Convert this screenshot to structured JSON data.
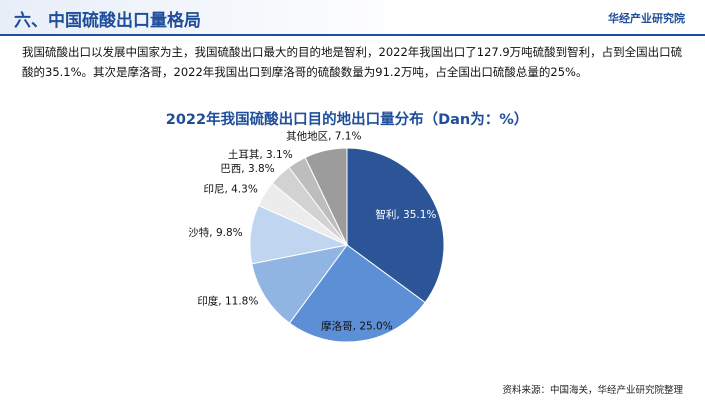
{
  "header": {
    "title": "六、中国硫酸出口量格局",
    "brand": "华经产业研究院"
  },
  "body": {
    "text": "我国硫酸出口以发展中国家为主，我国硫酸出口最大的目的地是智利，2022年我国出口了127.9万吨硫酸到智利，占到全国出口硫酸的35.1%。其次是摩洛哥，2022年我国出口到摩洛哥的硫酸数量为91.2万吨，占全国出口硫酸总量的25%。"
  },
  "chart_data": {
    "type": "pie",
    "title": "2022年我国硫酸出口目的地出口量分布（Dan为：%）",
    "values": [
      35.1,
      25.0,
      11.8,
      9.8,
      4.3,
      3.8,
      3.1,
      7.1
    ],
    "value_labels": [
      "智利, 35.1%",
      "摩洛哥, 25.0%",
      "印度, 11.8%",
      "沙特, 9.8%",
      "印尼, 4.3%",
      "巴西, 3.8%",
      "土耳其, 3.1%",
      "其他地区, 7.1%"
    ],
    "colors": [
      "#2b5597",
      "#5c8fd6",
      "#91b5e3",
      "#c0d5f0",
      "#ececec",
      "#d2d2d2",
      "#bdbdbd",
      "#9c9c9c"
    ]
  },
  "footer": {
    "source": "资料来源：中国海关，华经产业研究院整理"
  }
}
